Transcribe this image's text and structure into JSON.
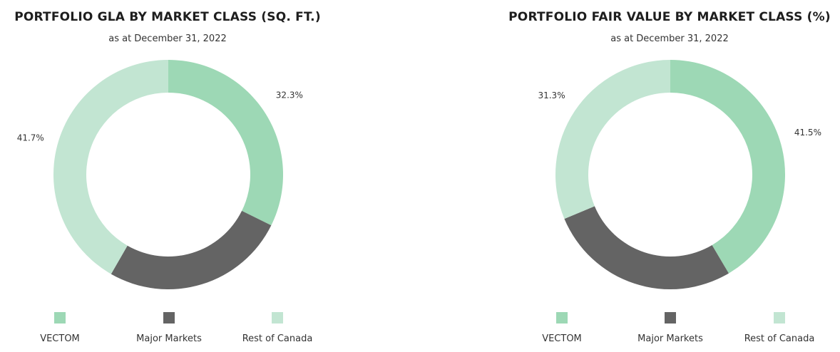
{
  "chart_data": [
    {
      "type": "pie",
      "title": "PORTFOLIO GLA BY MARKET CLASS (SQ. FT.)",
      "subtitle": "as at December 31, 2022",
      "categories": [
        "VECTOM",
        "Major Markets",
        "Rest of Canada"
      ],
      "values": [
        32.3,
        26.0,
        41.7
      ],
      "labels": [
        "32.3%",
        "26.0%",
        "41.7%"
      ],
      "colors": [
        "#9dd8b5",
        "#646464",
        "#c2e5d2"
      ],
      "legend_position": "bottom"
    },
    {
      "type": "pie",
      "title": "PORTFOLIO FAIR VALUE BY MARKET CLASS (%)",
      "subtitle": "as at December 31, 2022",
      "categories": [
        "VECTOM",
        "Major Markets",
        "Rest of Canada"
      ],
      "values": [
        41.5,
        27.2,
        31.3
      ],
      "labels": [
        "41.5%",
        "27.2%",
        "31.3%"
      ],
      "colors": [
        "#9dd8b5",
        "#646464",
        "#c2e5d2"
      ],
      "legend_position": "bottom"
    }
  ]
}
